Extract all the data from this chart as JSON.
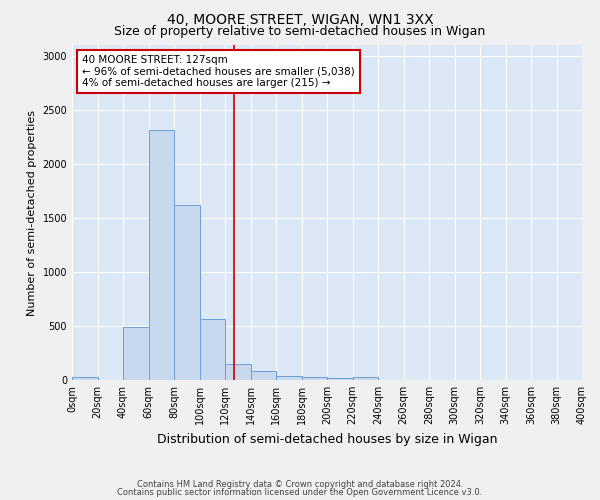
{
  "title": "40, MOORE STREET, WIGAN, WN1 3XX",
  "subtitle": "Size of property relative to semi-detached houses in Wigan",
  "xlabel": "Distribution of semi-detached houses by size in Wigan",
  "ylabel": "Number of semi-detached properties",
  "bin_edges": [
    0,
    20,
    40,
    60,
    80,
    100,
    120,
    140,
    160,
    180,
    200,
    220,
    240,
    260,
    280,
    300,
    320,
    340,
    360,
    380,
    400
  ],
  "bar_heights": [
    25,
    0,
    490,
    2310,
    1620,
    565,
    145,
    85,
    40,
    25,
    20,
    25,
    0,
    0,
    0,
    0,
    0,
    0,
    0,
    0
  ],
  "bar_color": "#c9d9ed",
  "bar_edgecolor": "#6a9fd8",
  "property_size": 127,
  "vline_color": "#cc0000",
  "annotation_text": "40 MOORE STREET: 127sqm\n← 96% of semi-detached houses are smaller (5,038)\n4% of semi-detached houses are larger (215) →",
  "annotation_box_edgecolor": "#cc0000",
  "annotation_box_facecolor": "#ffffff",
  "ylim": [
    0,
    3100
  ],
  "yticks": [
    0,
    500,
    1000,
    1500,
    2000,
    2500,
    3000
  ],
  "background_color": "#dce8f5",
  "grid_color": "#ffffff",
  "footer_line1": "Contains HM Land Registry data © Crown copyright and database right 2024.",
  "footer_line2": "Contains public sector information licensed under the Open Government Licence v3.0.",
  "title_fontsize": 10,
  "subtitle_fontsize": 9,
  "xlabel_fontsize": 9,
  "ylabel_fontsize": 8,
  "tick_fontsize": 7,
  "annotation_fontsize": 7.5
}
